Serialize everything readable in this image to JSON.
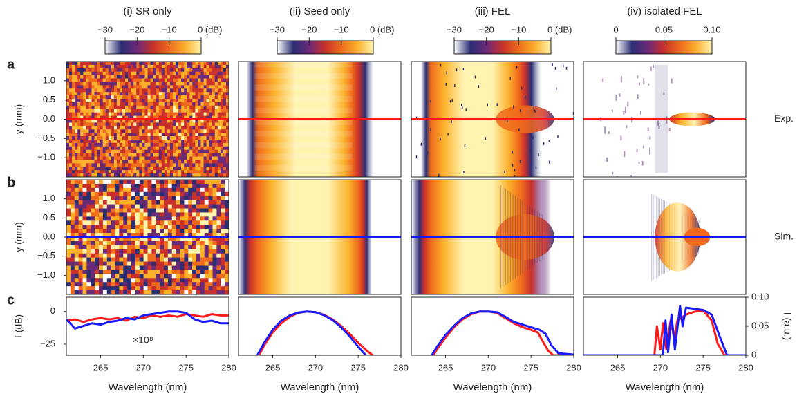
{
  "chart_data": {
    "type": "figure",
    "column_titles": [
      "(i) SR only",
      "(ii) Seed only",
      "(iii) FEL",
      "(iv) isolated FEL"
    ],
    "colormap": [
      "#ffffff",
      "#2b2f72",
      "#6a2a78",
      "#c9302c",
      "#ef6a1c",
      "#fbb12c",
      "#fff3b0"
    ],
    "colorbars": [
      {
        "lim": [
          -30,
          0
        ],
        "ticks": [
          {
            "value": -30,
            "label": "−30"
          },
          {
            "value": -20,
            "label": "−20"
          },
          {
            "value": -10,
            "label": "−10"
          },
          {
            "value": 0,
            "label": "0 (dB)"
          }
        ]
      },
      {
        "lim": [
          -30,
          0
        ],
        "ticks": [
          {
            "value": -30,
            "label": "−30"
          },
          {
            "value": -20,
            "label": "−20"
          },
          {
            "value": -10,
            "label": "−10"
          },
          {
            "value": 0,
            "label": "0 (dB)"
          }
        ]
      },
      {
        "lim": [
          -30,
          0
        ],
        "ticks": [
          {
            "value": -30,
            "label": "−30"
          },
          {
            "value": -20,
            "label": "−20"
          },
          {
            "value": -10,
            "label": "−10"
          },
          {
            "value": 0,
            "label": "0 (dB)"
          }
        ]
      },
      {
        "lim": [
          0,
          0.1
        ],
        "ticks": [
          0,
          0.05,
          {
            "value": 0.1,
            "label": "0.10"
          }
        ]
      }
    ],
    "rows": [
      {
        "label": "a",
        "side_label": "Exp.",
        "line_color": "#ff1a1a"
      },
      {
        "label": "b",
        "side_label": "Sim.",
        "line_color": "#1a1aff"
      }
    ],
    "lineout_y": 0,
    "ylabel": "y (mm)",
    "ylim": [
      -1.5,
      1.5
    ],
    "yticks": [
      {
        "value": 1,
        "label": "1.0"
      },
      {
        "value": 0.5,
        "label": "0.5"
      },
      {
        "value": 0,
        "label": "0.0"
      },
      {
        "value": -0.5,
        "label": "−0.5"
      },
      {
        "value": -1,
        "label": "−1.0"
      }
    ],
    "xlabel": "Wavelength (nm)",
    "xlim": [
      261,
      280
    ],
    "xticks": [
      265,
      270,
      275,
      280
    ],
    "row_c_label": "c",
    "line_panels": [
      {
        "type": "line",
        "ylim": [
          -33.5,
          11
        ],
        "yticks": [
          0,
          {
            "value": -25,
            "label": "−25"
          }
        ],
        "ylabel": "I (dB)",
        "annotation": "×10⁸",
        "series": [
          {
            "color": "#ff1a1a",
            "x": [
              261,
              262,
              263,
              264,
              265,
              266,
              267,
              268,
              269,
              270,
              271,
              272,
              273,
              274,
              275,
              276,
              277,
              278,
              279,
              280
            ],
            "values": [
              -7,
              -6,
              -8,
              -6,
              -5,
              -6,
              -5,
              -7,
              -4,
              -5,
              -3,
              -4,
              -3,
              -4,
              -2,
              -3,
              -4,
              -2,
              -3,
              -3
            ]
          },
          {
            "color": "#1a1aff",
            "x": [
              261,
              262,
              263,
              264,
              265,
              266,
              267,
              268,
              269,
              270,
              271,
              272,
              273,
              274,
              275,
              276,
              277,
              278,
              279,
              280
            ],
            "values": [
              -6,
              -13,
              -11,
              -9,
              -10,
              -8,
              -7,
              -5,
              -6,
              -3,
              -2,
              -1,
              0,
              0,
              -1,
              -6,
              -8,
              -7,
              -9,
              -9
            ]
          }
        ]
      },
      {
        "type": "line",
        "ylim": [
          -33.5,
          11
        ],
        "series": [
          {
            "color": "#ff1a1a",
            "x": [
              263.4,
              264,
              265,
              266,
              267,
              268,
              269,
              270,
              271,
              272,
              273,
              274,
              275,
              276,
              276.7
            ],
            "values": [
              -33.5,
              -26,
              -16,
              -9,
              -4,
              -1,
              0,
              -0.5,
              -2.5,
              -6,
              -11,
              -17,
              -24,
              -30,
              -33.5
            ]
          },
          {
            "color": "#1a1aff",
            "x": [
              263.2,
              264,
              265,
              266,
              267,
              268,
              269,
              270,
              271,
              272,
              273,
              274,
              275,
              275.9
            ],
            "values": [
              -33.5,
              -24,
              -14,
              -7,
              -3,
              -0.8,
              0,
              -0.5,
              -2.8,
              -6.5,
              -12,
              -19,
              -27,
              -33.5
            ]
          }
        ]
      },
      {
        "type": "line",
        "ylim": [
          -33.5,
          11
        ],
        "series": [
          {
            "color": "#ff1a1a",
            "x": [
              263.6,
              264,
              265,
              266,
              267,
              268,
              269,
              270,
              271,
              272,
              273,
              274,
              275,
              275.8,
              276.3,
              277,
              277.6,
              280
            ],
            "values": [
              -33.5,
              -29,
              -20,
              -12,
              -6,
              -2,
              0,
              0,
              -1,
              -5,
              -9,
              -12,
              -14,
              -16,
              -22,
              -30,
              -33.5,
              -33.5
            ]
          },
          {
            "color": "#1a1aff",
            "x": [
              263.4,
              264,
              265,
              266,
              267,
              268,
              269,
              270,
              271,
              272,
              273,
              274,
              275,
              276,
              276.7,
              277.4,
              278.2,
              280
            ],
            "values": [
              -33.5,
              -27,
              -18,
              -11,
              -5,
              -1.5,
              0,
              0,
              -0.5,
              -4,
              -8,
              -10,
              -12,
              -14,
              -17,
              -26,
              -32,
              -33
            ]
          }
        ]
      },
      {
        "type": "line",
        "y2lim": [
          0,
          0.1
        ],
        "y2ticks": [
          0,
          0.05,
          {
            "value": 0.1,
            "label": "0.10"
          }
        ],
        "y2label": "I (a.u.)",
        "series": [
          {
            "color": "#ff1a1a",
            "axis": "y2",
            "x": [
              261,
              269.3,
              269.6,
              270,
              270.3,
              270.7,
              271.2,
              271.6,
              272,
              273,
              274,
              275,
              276,
              276.7,
              277.5,
              280
            ],
            "values": [
              0,
              0,
              0.05,
              0.01,
              0.055,
              0.01,
              0.06,
              0.03,
              0.06,
              0.07,
              0.075,
              0.077,
              0.06,
              0.02,
              0,
              0
            ]
          },
          {
            "color": "#1a1aff",
            "axis": "y2",
            "x": [
              261,
              270.3,
              270.6,
              270.9,
              271.3,
              271.7,
              272.3,
              272.6,
              273,
              274,
              275,
              276,
              277,
              277.8,
              280
            ],
            "values": [
              0,
              0,
              0.06,
              0.005,
              0.07,
              0.01,
              0.085,
              0.05,
              0.082,
              0.08,
              0.078,
              0.07,
              0.03,
              0,
              0
            ]
          }
        ]
      }
    ]
  }
}
